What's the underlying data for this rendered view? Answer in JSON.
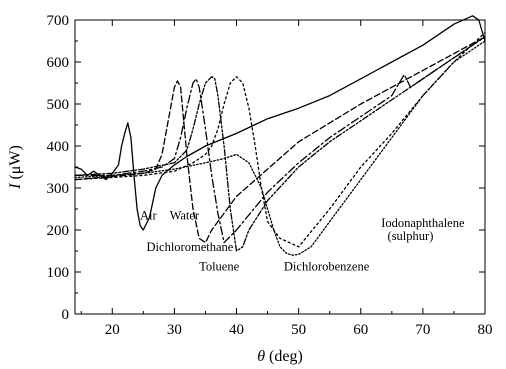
{
  "chart_data": {
    "type": "line",
    "title": "",
    "xlabel_symbol": "θ",
    "xlabel_unit": " (deg)",
    "ylabel_symbol": "I",
    "ylabel_unit": " (μW)",
    "xlim": [
      14,
      80
    ],
    "ylim": [
      0,
      700
    ],
    "x_ticks": [
      20,
      30,
      40,
      50,
      60,
      70,
      80
    ],
    "y_ticks": [
      0,
      100,
      200,
      300,
      400,
      500,
      600,
      700
    ],
    "grid": false,
    "series": [
      {
        "name": "Air",
        "dash": "",
        "x": [
          14,
          15,
          16,
          17,
          18,
          19,
          20,
          21,
          21.5,
          22,
          22.5,
          23,
          23.5,
          24,
          24.5,
          25,
          26,
          27,
          28,
          30,
          32,
          35,
          40,
          45,
          50,
          55,
          60,
          65,
          70,
          75,
          78,
          79,
          80
        ],
        "y": [
          350,
          345,
          330,
          340,
          330,
          320,
          335,
          355,
          400,
          430,
          455,
          420,
          330,
          250,
          210,
          200,
          230,
          300,
          330,
          355,
          375,
          400,
          430,
          465,
          490,
          520,
          560,
          600,
          640,
          690,
          710,
          700,
          650
        ]
      },
      {
        "name": "Water",
        "dash": "6,3",
        "x": [
          14,
          18,
          22,
          25,
          27,
          28,
          29,
          30,
          30.5,
          31,
          31.5,
          32,
          33,
          34,
          35,
          36,
          40,
          50,
          60,
          70,
          80
        ],
        "y": [
          320,
          325,
          330,
          335,
          345,
          380,
          460,
          540,
          555,
          540,
          460,
          380,
          250,
          180,
          170,
          200,
          280,
          410,
          500,
          580,
          660
        ]
      },
      {
        "name": "Dichloromethane",
        "dash": "8,3,2,3",
        "x": [
          14,
          20,
          25,
          28,
          30,
          31,
          32,
          33,
          33.5,
          34,
          35,
          36,
          37,
          38,
          40,
          45,
          50,
          55,
          60,
          65,
          67,
          68,
          70,
          75,
          80
        ],
        "y": [
          330,
          330,
          340,
          350,
          370,
          420,
          490,
          550,
          560,
          540,
          440,
          330,
          240,
          170,
          200,
          290,
          360,
          420,
          470,
          520,
          570,
          540,
          560,
          610,
          660
        ]
      },
      {
        "name": "Toluene",
        "dash": "6,2,2,2,2,2",
        "x": [
          14,
          20,
          25,
          30,
          32,
          33,
          34,
          35,
          36,
          36.5,
          37,
          38,
          39,
          40,
          41,
          42,
          45,
          50,
          55,
          60,
          65,
          70,
          75,
          80
        ],
        "y": [
          330,
          335,
          345,
          360,
          390,
          440,
          500,
          550,
          565,
          560,
          520,
          400,
          250,
          150,
          160,
          200,
          270,
          350,
          410,
          460,
          510,
          560,
          610,
          660
        ]
      },
      {
        "name": "Dichlorobenzene",
        "dash": "2,3",
        "x": [
          14,
          20,
          25,
          30,
          33,
          35,
          36,
          37,
          38,
          39,
          40,
          41,
          42,
          43,
          44,
          45,
          47,
          50,
          55,
          60,
          65,
          70,
          75,
          80
        ],
        "y": [
          320,
          325,
          330,
          340,
          360,
          380,
          400,
          440,
          500,
          550,
          565,
          550,
          490,
          400,
          300,
          220,
          180,
          160,
          250,
          350,
          430,
          520,
          600,
          670
        ]
      },
      {
        "name": "Iodonaphthalene (sulphur)",
        "dash": "1.5,2",
        "x": [
          14,
          20,
          25,
          30,
          35,
          38,
          40,
          42,
          44,
          46,
          47,
          48,
          49,
          50,
          52,
          55,
          60,
          65,
          70,
          75,
          80
        ],
        "y": [
          325,
          330,
          335,
          345,
          360,
          370,
          380,
          360,
          300,
          200,
          160,
          145,
          140,
          142,
          160,
          220,
          320,
          420,
          520,
          600,
          650
        ]
      }
    ],
    "annotations": [
      {
        "id": "air",
        "text": "Air",
        "x": 25.8,
        "y": 225
      },
      {
        "id": "water",
        "text": "Water",
        "x": 31.6,
        "y": 225
      },
      {
        "id": "dichloromethane",
        "text": "Dichloromethane",
        "x": 32.5,
        "y": 150
      },
      {
        "id": "toluene",
        "text": "Toluene",
        "x": 37.2,
        "y": 103
      },
      {
        "id": "dichlorobenzene",
        "text": "Dichlorobenzene",
        "x": 54.5,
        "y": 103
      },
      {
        "id": "iodonaphthalene",
        "text": "Iodonaphthalene",
        "x": 70,
        "y": 207
      },
      {
        "id": "sulphur",
        "text": "(sulphur)",
        "x": 68,
        "y": 176
      }
    ]
  }
}
